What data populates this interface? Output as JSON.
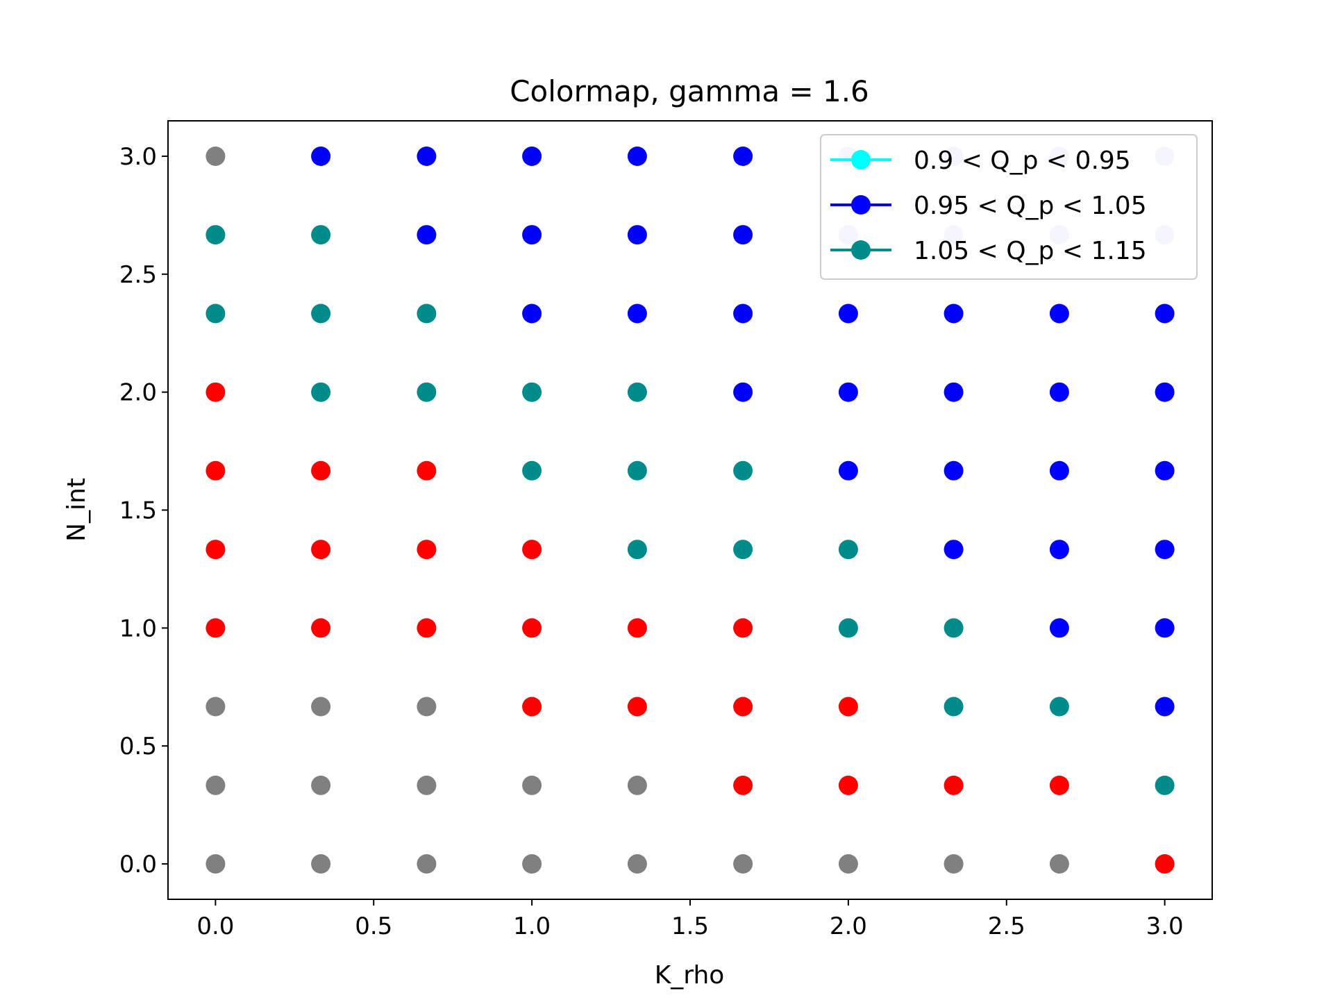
{
  "chart_data": {
    "type": "scatter",
    "title": "Colormap, gamma = 1.6",
    "xlabel": "K_rho",
    "ylabel": "N_int",
    "xlim": [
      -0.15,
      3.15
    ],
    "ylim": [
      -0.15,
      3.15
    ],
    "xticks": [
      "0.0",
      "0.5",
      "1.0",
      "1.5",
      "2.0",
      "2.5",
      "3.0"
    ],
    "yticks": [
      "0.0",
      "0.5",
      "1.0",
      "1.5",
      "2.0",
      "2.5",
      "3.0"
    ],
    "grid": false,
    "legend_position": "top-right",
    "x_values": [
      0,
      0.333,
      0.667,
      1.0,
      1.333,
      1.667,
      2.0,
      2.333,
      2.667,
      3.0
    ],
    "y_values": [
      0,
      0.333,
      0.667,
      1.0,
      1.333,
      1.667,
      2.0,
      2.333,
      2.667,
      3.0
    ],
    "category_colors": {
      "gray": "#808080",
      "red": "#ff0000",
      "teal": "#008b8b",
      "blue": "#0000ff",
      "cyan": "#00ffff",
      "lavender": "#ccccff"
    },
    "grid_categories_by_row_from_top": [
      [
        "gray",
        "blue",
        "blue",
        "blue",
        "blue",
        "blue",
        "lavender",
        "lavender",
        "lavender",
        "lavender"
      ],
      [
        "teal",
        "teal",
        "blue",
        "blue",
        "blue",
        "blue",
        "lavender",
        "lavender",
        "lavender",
        "lavender"
      ],
      [
        "teal",
        "teal",
        "teal",
        "blue",
        "blue",
        "blue",
        "blue",
        "blue",
        "blue",
        "blue"
      ],
      [
        "red",
        "teal",
        "teal",
        "teal",
        "teal",
        "blue",
        "blue",
        "blue",
        "blue",
        "blue"
      ],
      [
        "red",
        "red",
        "red",
        "teal",
        "teal",
        "teal",
        "blue",
        "blue",
        "blue",
        "blue"
      ],
      [
        "red",
        "red",
        "red",
        "red",
        "teal",
        "teal",
        "teal",
        "blue",
        "blue",
        "blue"
      ],
      [
        "red",
        "red",
        "red",
        "red",
        "red",
        "red",
        "teal",
        "teal",
        "blue",
        "blue"
      ],
      [
        "gray",
        "gray",
        "gray",
        "red",
        "red",
        "red",
        "red",
        "teal",
        "teal",
        "blue"
      ],
      [
        "gray",
        "gray",
        "gray",
        "gray",
        "gray",
        "red",
        "red",
        "red",
        "red",
        "teal"
      ],
      [
        "gray",
        "gray",
        "gray",
        "gray",
        "gray",
        "gray",
        "gray",
        "gray",
        "gray",
        "red"
      ]
    ],
    "legend": [
      {
        "label": "0.9 < Q_p < 0.95",
        "color": "#00ffff"
      },
      {
        "label": "0.95 < Q_p < 1.05",
        "color": "#0000ff"
      },
      {
        "label": "1.05 < Q_p < 1.15",
        "color": "#008b8b"
      }
    ]
  }
}
